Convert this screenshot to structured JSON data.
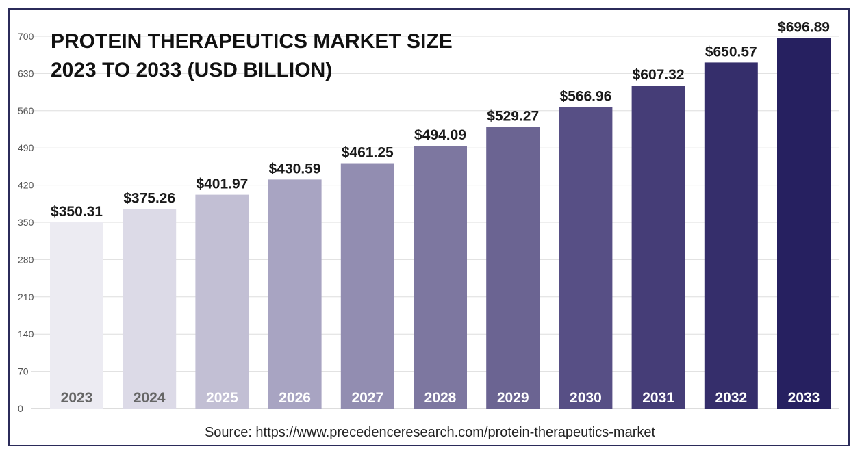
{
  "chart_data": {
    "type": "bar",
    "title": [
      "PROTEIN THERAPEUTICS MARKET SIZE",
      "2023 TO 2033 (USD BILLION)"
    ],
    "categories": [
      "2023",
      "2024",
      "2025",
      "2026",
      "2027",
      "2028",
      "2029",
      "2030",
      "2031",
      "2032",
      "2033"
    ],
    "values": [
      350.31,
      375.26,
      401.97,
      430.59,
      461.25,
      494.09,
      529.27,
      566.96,
      607.32,
      650.57,
      696.89
    ],
    "value_labels": [
      "$350.31",
      "$375.26",
      "$401.97",
      "$430.59",
      "$461.25",
      "$494.09",
      "$529.27",
      "$566.96",
      "$607.32",
      "$650.57",
      "$696.89"
    ],
    "bar_colors": [
      "#ecebf2",
      "#dcdae7",
      "#c2bfd4",
      "#a8a4c2",
      "#928db1",
      "#7d77a0",
      "#6b6492",
      "#574f85",
      "#453d77",
      "#352e6b",
      "#262060"
    ],
    "label_colors": [
      "#666666",
      "#666666",
      "#ffffff",
      "#ffffff",
      "#ffffff",
      "#ffffff",
      "#ffffff",
      "#ffffff",
      "#ffffff",
      "#ffffff",
      "#ffffff"
    ],
    "yticks": [
      0,
      70,
      140,
      210,
      280,
      350,
      420,
      490,
      560,
      630,
      700
    ],
    "ylim": [
      0,
      700
    ],
    "xlabel": "",
    "ylabel": "",
    "grid": true,
    "source": "Source: https://www.precedenceresearch.com/protein-therapeutics-market"
  }
}
